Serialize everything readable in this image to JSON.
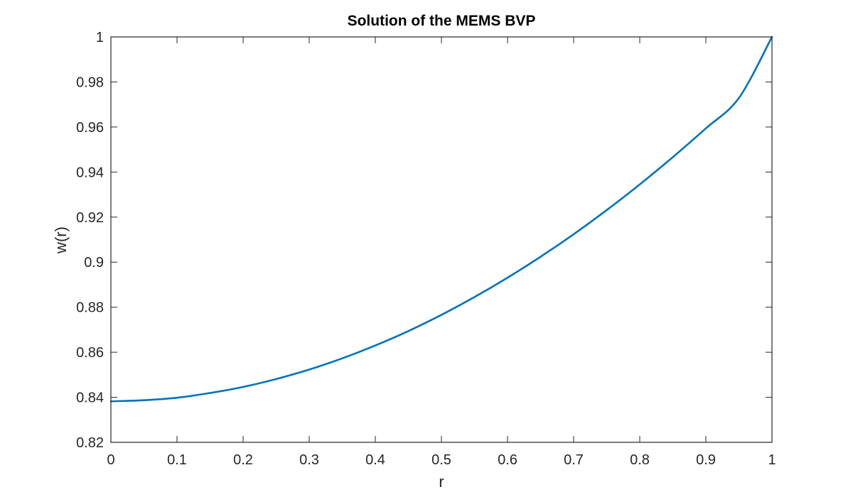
{
  "chart_data": {
    "type": "line",
    "title": "Solution of the MEMS BVP",
    "xlabel": "r",
    "ylabel": "w(r)",
    "xlim": [
      0,
      1
    ],
    "ylim": [
      0.82,
      1
    ],
    "grid": false,
    "legend": null,
    "xticks": [
      "0",
      "0.1",
      "0.2",
      "0.3",
      "0.4",
      "0.5",
      "0.6",
      "0.7",
      "0.8",
      "0.9",
      "1"
    ],
    "yticks": [
      "0.82",
      "0.84",
      "0.86",
      "0.88",
      "0.9",
      "0.92",
      "0.94",
      "0.96",
      "0.98",
      "1"
    ],
    "series": [
      {
        "name": "w(r)",
        "color": "#0072BD",
        "x": [
          0,
          0.05,
          0.1,
          0.15,
          0.2,
          0.25,
          0.3,
          0.35,
          0.4,
          0.45,
          0.5,
          0.55,
          0.6,
          0.65,
          0.7,
          0.75,
          0.8,
          0.85,
          0.9,
          0.95,
          1.0
        ],
        "values": [
          0.8382,
          0.8387,
          0.8398,
          0.8419,
          0.8446,
          0.8481,
          0.8523,
          0.8573,
          0.863,
          0.8694,
          0.8766,
          0.8845,
          0.8931,
          0.9024,
          0.9124,
          0.9231,
          0.9345,
          0.9466,
          0.9594,
          0.9729,
          1.0
        ]
      }
    ]
  },
  "figure": {
    "title": "Solution of the MEMS BVP",
    "xlabel": "r",
    "ylabel": "w(r)",
    "line_color": "#0072BD",
    "axis_color": "#262626"
  }
}
